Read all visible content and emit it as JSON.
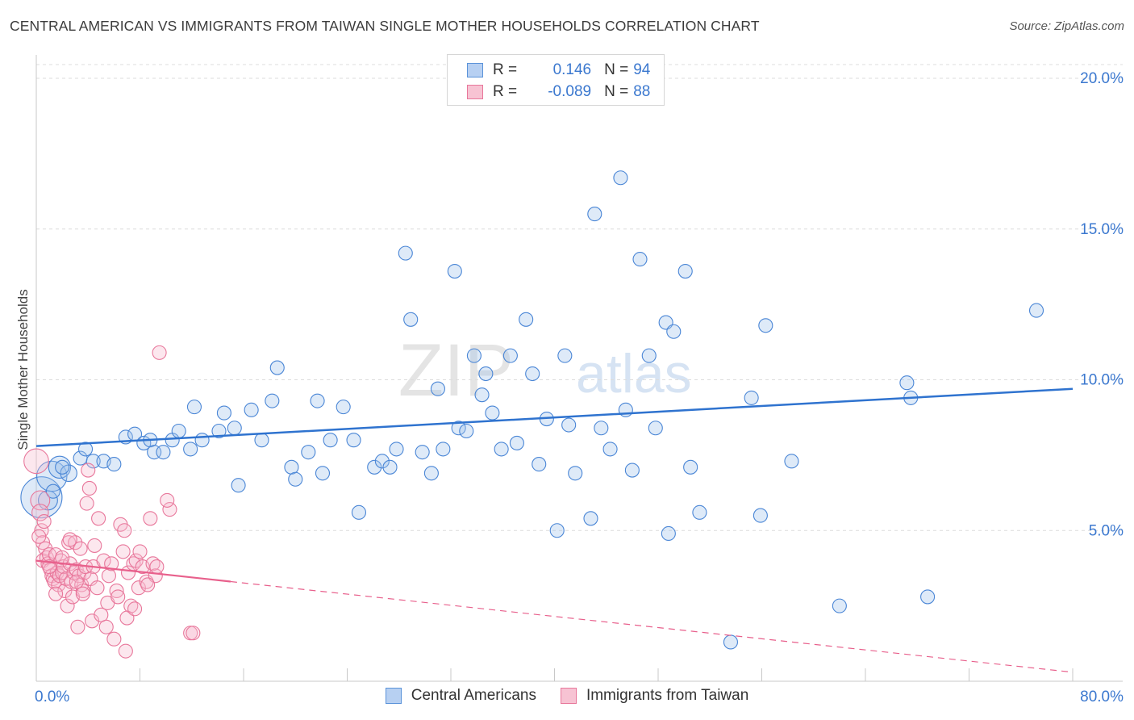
{
  "title": "CENTRAL AMERICAN VS IMMIGRANTS FROM TAIWAN SINGLE MOTHER HOUSEHOLDS CORRELATION CHART",
  "source": "Source: ZipAtlas.com",
  "watermark": {
    "zip": "ZIP",
    "atlas": "atlas"
  },
  "legend_top": {
    "rows": [
      {
        "series": "Central Americans",
        "r_label": "R =",
        "r_value": "0.146",
        "n_label": "N =",
        "n_value": "94",
        "color": "#5b93d9",
        "fill": "#b7d0f2"
      },
      {
        "series": "Immigrants from Taiwan",
        "r_label": "R =",
        "r_value": "-0.089",
        "n_label": "N =",
        "n_value": "88",
        "color": "#e8779b",
        "fill": "#f7c3d3"
      }
    ]
  },
  "legend_bottom": [
    "Central Americans",
    "Immigrants from Taiwan"
  ],
  "colors": {
    "blue": "#4a86d6",
    "blue_fill": "rgba(160,194,236,0.35)",
    "blue_line": "#2f73cf",
    "pink": "#e8779b",
    "pink_fill": "rgba(246,186,205,0.35)",
    "pink_line": "#e8608c",
    "axis_text": "#3b78cf",
    "grid": "#dcdcdc"
  },
  "chart_data": {
    "type": "scatter",
    "title": "CENTRAL AMERICAN VS IMMIGRANTS FROM TAIWAN SINGLE MOTHER HOUSEHOLDS CORRELATION CHART",
    "xlabel": "",
    "ylabel": "Single Mother Households",
    "xlim": [
      0,
      80
    ],
    "ylim": [
      0,
      20
    ],
    "x_tick_labels": [
      "0.0%",
      "80.0%"
    ],
    "y_ticks": [
      5,
      10,
      15,
      20
    ],
    "y_tick_labels": [
      "5.0%",
      "10.0%",
      "15.0%",
      "20.0%"
    ],
    "grid": true,
    "series": [
      {
        "name": "Central Americans",
        "trend": {
          "x0": 0,
          "y0": 7.8,
          "x1": 80,
          "y1": 9.7
        },
        "points": [
          [
            0.4,
            6.1,
            3
          ],
          [
            1.2,
            6.8,
            2.2
          ],
          [
            1.8,
            7.1,
            1.6
          ],
          [
            2.5,
            6.9,
            1.2
          ],
          [
            3.4,
            7.4,
            1
          ],
          [
            3.8,
            7.7,
            1
          ],
          [
            4.4,
            7.3,
            1
          ],
          [
            5.2,
            7.3,
            1
          ],
          [
            6,
            7.2,
            1
          ],
          [
            6.9,
            8.1,
            1
          ],
          [
            7.6,
            8.2,
            1
          ],
          [
            8.3,
            7.9,
            1
          ],
          [
            8.8,
            8,
            1
          ],
          [
            9.1,
            7.6,
            1
          ],
          [
            9.8,
            7.6,
            1
          ],
          [
            10.5,
            8,
            1
          ],
          [
            11,
            8.3,
            1
          ],
          [
            11.9,
            7.7,
            1
          ],
          [
            12.2,
            9.1,
            1
          ],
          [
            12.8,
            8,
            1
          ],
          [
            14.1,
            8.3,
            1
          ],
          [
            14.5,
            8.9,
            1
          ],
          [
            15.3,
            8.4,
            1
          ],
          [
            15.6,
            6.5,
            1
          ],
          [
            16.6,
            9.0,
            1
          ],
          [
            17.4,
            8.0,
            1
          ],
          [
            18.2,
            9.3,
            1
          ],
          [
            18.6,
            10.4,
            1
          ],
          [
            19.7,
            7.1,
            1
          ],
          [
            20,
            6.7,
            1
          ],
          [
            21,
            7.6,
            1
          ],
          [
            21.7,
            9.3,
            1
          ],
          [
            22.1,
            6.9,
            1
          ],
          [
            22.7,
            8,
            1
          ],
          [
            23.7,
            9.1,
            1
          ],
          [
            24.5,
            8,
            1
          ],
          [
            24.9,
            5.6,
            1
          ],
          [
            26.1,
            7.1,
            1
          ],
          [
            26.7,
            7.3,
            1
          ],
          [
            27.3,
            7.1,
            1
          ],
          [
            27.8,
            7.7,
            1
          ],
          [
            28.5,
            14.2,
            1
          ],
          [
            28.9,
            12,
            1
          ],
          [
            29.8,
            7.6,
            1
          ],
          [
            30.5,
            6.9,
            1
          ],
          [
            31,
            9.7,
            1
          ],
          [
            31.4,
            7.7,
            1
          ],
          [
            32.3,
            13.6,
            1
          ],
          [
            32.6,
            8.4,
            1
          ],
          [
            33.2,
            8.3,
            1
          ],
          [
            33.8,
            10.8,
            1
          ],
          [
            34.4,
            9.5,
            1
          ],
          [
            34.7,
            10.2,
            1
          ],
          [
            35.2,
            8.9,
            1
          ],
          [
            35.9,
            7.7,
            1
          ],
          [
            36.6,
            10.8,
            1
          ],
          [
            37.1,
            7.9,
            1
          ],
          [
            37.8,
            12,
            1
          ],
          [
            38.3,
            10.2,
            1
          ],
          [
            38.8,
            7.2,
            1
          ],
          [
            39.4,
            8.7,
            1
          ],
          [
            40.2,
            5,
            1
          ],
          [
            40.8,
            10.8,
            1
          ],
          [
            41.1,
            8.5,
            1
          ],
          [
            41.6,
            6.9,
            1
          ],
          [
            42.8,
            5.4,
            1
          ],
          [
            43.1,
            15.5,
            1
          ],
          [
            43.6,
            8.4,
            1
          ],
          [
            44.3,
            7.7,
            1
          ],
          [
            45.1,
            16.7,
            1
          ],
          [
            45.5,
            9.0,
            1
          ],
          [
            46,
            7.0,
            1
          ],
          [
            46.6,
            14,
            1
          ],
          [
            47.3,
            10.8,
            1
          ],
          [
            47.8,
            8.4,
            1
          ],
          [
            48.6,
            11.9,
            1
          ],
          [
            48.8,
            4.9,
            1
          ],
          [
            49.2,
            11.6,
            1
          ],
          [
            50.1,
            13.6,
            1
          ],
          [
            50.5,
            7.1,
            1
          ],
          [
            51.2,
            5.6,
            1
          ],
          [
            53.6,
            1.3,
            1
          ],
          [
            55.2,
            9.4,
            1
          ],
          [
            55.9,
            5.5,
            1
          ],
          [
            56.3,
            11.8,
            1
          ],
          [
            58.3,
            7.3,
            1
          ],
          [
            62,
            2.5,
            1
          ],
          [
            67.2,
            9.9,
            1
          ],
          [
            67.5,
            9.4,
            1
          ],
          [
            68.8,
            2.8,
            1
          ],
          [
            77.2,
            12.3,
            1
          ],
          [
            0.9,
            6.0,
            1.4
          ],
          [
            2.0,
            7.1,
            1
          ],
          [
            1.3,
            6.3,
            1
          ]
        ]
      },
      {
        "name": "Immigrants from Taiwan",
        "trend": {
          "x0": 0,
          "y0": 4.0,
          "x1": 80,
          "y1": 0.3,
          "solid_until_x": 15
        },
        "points": [
          [
            0,
            7.3,
            1.8
          ],
          [
            0.3,
            6.0,
            1.4
          ],
          [
            0.3,
            5.6,
            1.2
          ],
          [
            0.4,
            5.0,
            1
          ],
          [
            0.5,
            4.6,
            1
          ],
          [
            0.5,
            4.0,
            1
          ],
          [
            0.7,
            4.4,
            1
          ],
          [
            0.8,
            4.1,
            1
          ],
          [
            0.9,
            3.9,
            1
          ],
          [
            1,
            4.2,
            1
          ],
          [
            1.1,
            3.7,
            1
          ],
          [
            1.2,
            3.5,
            1
          ],
          [
            1.3,
            3.4,
            1
          ],
          [
            1.4,
            3.3,
            1
          ],
          [
            1.5,
            4.2,
            1
          ],
          [
            1.6,
            3.6,
            1
          ],
          [
            1.7,
            3.2,
            1
          ],
          [
            1.8,
            3.5,
            1
          ],
          [
            1.9,
            4.0,
            1
          ],
          [
            2,
            3.6,
            1
          ],
          [
            2.1,
            3.8,
            1
          ],
          [
            2.2,
            3.0,
            1
          ],
          [
            2.3,
            3.4,
            1
          ],
          [
            2.4,
            2.5,
            1
          ],
          [
            2.5,
            4.6,
            1
          ],
          [
            2.6,
            3.9,
            1
          ],
          [
            2.7,
            3.3,
            1
          ],
          [
            2.8,
            2.8,
            1
          ],
          [
            2.9,
            3.6,
            1
          ],
          [
            3,
            4.6,
            1
          ],
          [
            3.1,
            3.7,
            1
          ],
          [
            3.2,
            1.8,
            1
          ],
          [
            3.3,
            3.5,
            1
          ],
          [
            3.4,
            4.4,
            1
          ],
          [
            3.5,
            3.2,
            1
          ],
          [
            3.6,
            3.0,
            1
          ],
          [
            3.7,
            3.6,
            1
          ],
          [
            3.8,
            3.8,
            1
          ],
          [
            3.9,
            5.9,
            1
          ],
          [
            4,
            7.0,
            1
          ],
          [
            4.1,
            6.4,
            1
          ],
          [
            4.3,
            2.0,
            1
          ],
          [
            4.4,
            3.8,
            1
          ],
          [
            4.5,
            4.5,
            1
          ],
          [
            4.8,
            5.4,
            1
          ],
          [
            5,
            2.2,
            1
          ],
          [
            5.2,
            4.0,
            1
          ],
          [
            5.4,
            1.8,
            1
          ],
          [
            5.6,
            3.5,
            1
          ],
          [
            5.8,
            3.9,
            1
          ],
          [
            6,
            1.4,
            1
          ],
          [
            6.2,
            3.0,
            1
          ],
          [
            6.5,
            5.2,
            1
          ],
          [
            6.7,
            4.3,
            1
          ],
          [
            6.9,
            1.0,
            1
          ],
          [
            7.1,
            3.6,
            1
          ],
          [
            7.3,
            2.5,
            1
          ],
          [
            7.5,
            3.9,
            1
          ],
          [
            7.7,
            4.0,
            1
          ],
          [
            7.9,
            3.1,
            1
          ],
          [
            8.2,
            3.8,
            1
          ],
          [
            8.5,
            3.3,
            1
          ],
          [
            8.8,
            5.4,
            1
          ],
          [
            9,
            3.9,
            1
          ],
          [
            9.2,
            3.5,
            1
          ],
          [
            9.5,
            10.9,
            1
          ],
          [
            10.3,
            5.7,
            1
          ],
          [
            10.1,
            6.0,
            1
          ],
          [
            11.9,
            1.6,
            1
          ],
          [
            12.1,
            1.6,
            1
          ],
          [
            0.2,
            4.8,
            1
          ],
          [
            0.6,
            5.3,
            1
          ],
          [
            1.0,
            3.8,
            1
          ],
          [
            1.5,
            2.9,
            1
          ],
          [
            2.0,
            4.1,
            1
          ],
          [
            2.6,
            4.7,
            1
          ],
          [
            3.1,
            3.3,
            1
          ],
          [
            3.6,
            2.9,
            1
          ],
          [
            4.2,
            3.4,
            1
          ],
          [
            4.7,
            3.1,
            1
          ],
          [
            5.5,
            2.6,
            1
          ],
          [
            6.3,
            2.8,
            1
          ],
          [
            7.0,
            2.1,
            1
          ],
          [
            7.6,
            2.4,
            1
          ],
          [
            8.0,
            4.3,
            1
          ],
          [
            8.6,
            3.2,
            1
          ],
          [
            9.3,
            3.8,
            1
          ],
          [
            6.8,
            5.0,
            1
          ]
        ]
      }
    ]
  }
}
